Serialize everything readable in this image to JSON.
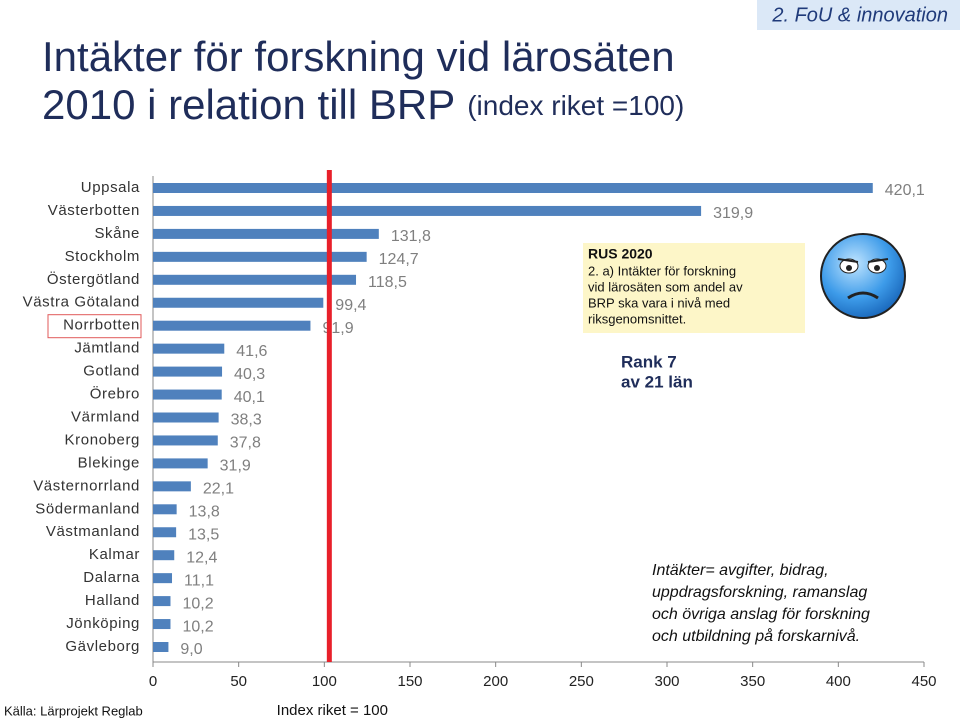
{
  "header": "2. FoU & innovation",
  "chart_data": {
    "type": "bar",
    "orientation": "horizontal",
    "title": [
      "Intäkter för forskning vid lärosäten",
      "2010 i relation till BRP"
    ],
    "subtitle": "(index riket =100)",
    "categories": [
      "Uppsala",
      "Västerbotten",
      "Skåne",
      "Stockholm",
      "Östergötland",
      "Västra Götaland",
      "Norrbotten",
      "Jämtland",
      "Gotland",
      "Örebro",
      "Värmland",
      "Kronoberg",
      "Blekinge",
      "Västernorrland",
      "Södermanland",
      "Västmanland",
      "Kalmar",
      "Dalarna",
      "Halland",
      "Jönköping",
      "Gävleborg"
    ],
    "values": [
      420.1,
      319.9,
      131.8,
      124.7,
      118.5,
      99.4,
      91.9,
      41.6,
      40.3,
      40.1,
      38.3,
      37.8,
      31.9,
      22.1,
      13.8,
      13.5,
      12.4,
      11.1,
      10.2,
      10.2,
      9.0
    ],
    "value_labels": [
      "420,1",
      "319,9",
      "131,8",
      "124,7",
      "118,5",
      "99,4",
      "91,9",
      "41,6",
      "40,3",
      "40,1",
      "38,3",
      "37,8",
      "31,9",
      "22,1",
      "13,8",
      "13,5",
      "12,4",
      "11,1",
      "10,2",
      "10,2",
      "9,0"
    ],
    "color": "#4f81bd",
    "highlight_category": 6,
    "xlim": [
      0,
      450
    ],
    "xticks": [
      0,
      50,
      100,
      150,
      200,
      250,
      300,
      350,
      400,
      450
    ],
    "reference_line": {
      "value": 100,
      "label": "Index riket = 100",
      "color": "#e8202a"
    }
  },
  "goal_box": {
    "title": "RUS 2020",
    "lines": [
      "2. a) Intäkter för forskning",
      "vid lärosäten som andel av",
      "BRP ska vara i nivå med",
      "riksgenomsnittet."
    ]
  },
  "rank": [
    "Rank 7",
    "av 21 län"
  ],
  "note": [
    "Intäkter= avgifter, bidrag,",
    "uppdragsforskning, ramanslag",
    "och övriga anslag för forskning",
    "och utbildning på forskarnivå."
  ],
  "source": "Källa: Lärprojekt Reglab"
}
